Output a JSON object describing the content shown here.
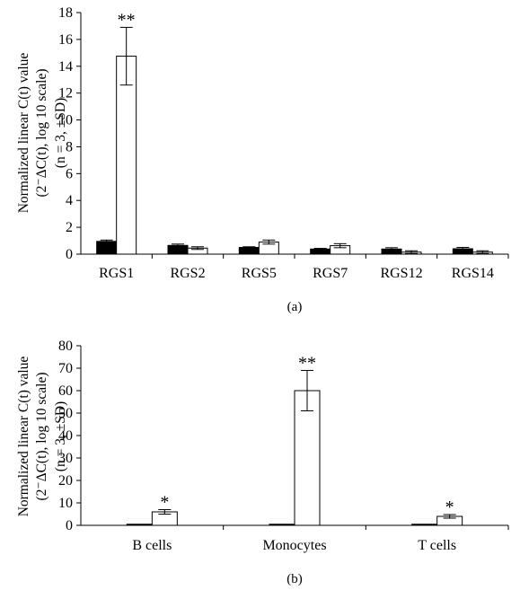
{
  "chart_data": [
    {
      "type": "bar",
      "panel_label": "(a)",
      "ylabel_lines": [
        "Normalized linear C(t) value",
        "(2⁻ΔC(t), log 10 scale)",
        "(n = 3, ±SD)"
      ],
      "ylim": [
        0,
        18
      ],
      "yticks": [
        0,
        2,
        4,
        6,
        8,
        10,
        12,
        14,
        16,
        18
      ],
      "categories": [
        "RGS1",
        "RGS2",
        "RGS5",
        "RGS7",
        "RGS12",
        "RGS14"
      ],
      "series": [
        {
          "fill": "#000000",
          "values": [
            0.95,
            0.65,
            0.5,
            0.38,
            0.38,
            0.4
          ],
          "errors": [
            0.1,
            0.1,
            0.05,
            0.05,
            0.1,
            0.1
          ]
        },
        {
          "fill": "#ffffff",
          "values": [
            14.75,
            0.45,
            0.9,
            0.63,
            0.15,
            0.15
          ],
          "errors": [
            2.15,
            0.1,
            0.15,
            0.15,
            0.1,
            0.1
          ]
        }
      ],
      "significance": [
        {
          "category": 0,
          "series": 1,
          "mark": "**"
        }
      ],
      "grid": false,
      "legend": "none"
    },
    {
      "type": "bar",
      "panel_label": "(b)",
      "ylabel_lines": [
        "Normalized linear C(t) value",
        "(2⁻ΔC(t), log 10 scale)",
        "(n = 3, ±SD)"
      ],
      "ylim": [
        0,
        80
      ],
      "yticks": [
        0,
        10,
        20,
        30,
        40,
        50,
        60,
        70,
        80
      ],
      "categories": [
        "B cells",
        "Monocytes",
        "T cells"
      ],
      "series": [
        {
          "fill": "#000000",
          "values": [
            0.5,
            0.5,
            0.5
          ],
          "errors": [
            0,
            0,
            0
          ]
        },
        {
          "fill": "#ffffff",
          "values": [
            6,
            60,
            4
          ],
          "errors": [
            1,
            9,
            0.8
          ]
        }
      ],
      "significance": [
        {
          "category": 0,
          "series": 1,
          "mark": "*"
        },
        {
          "category": 1,
          "series": 1,
          "mark": "**"
        },
        {
          "category": 2,
          "series": 1,
          "mark": "*"
        }
      ],
      "grid": false,
      "legend": "none"
    }
  ]
}
